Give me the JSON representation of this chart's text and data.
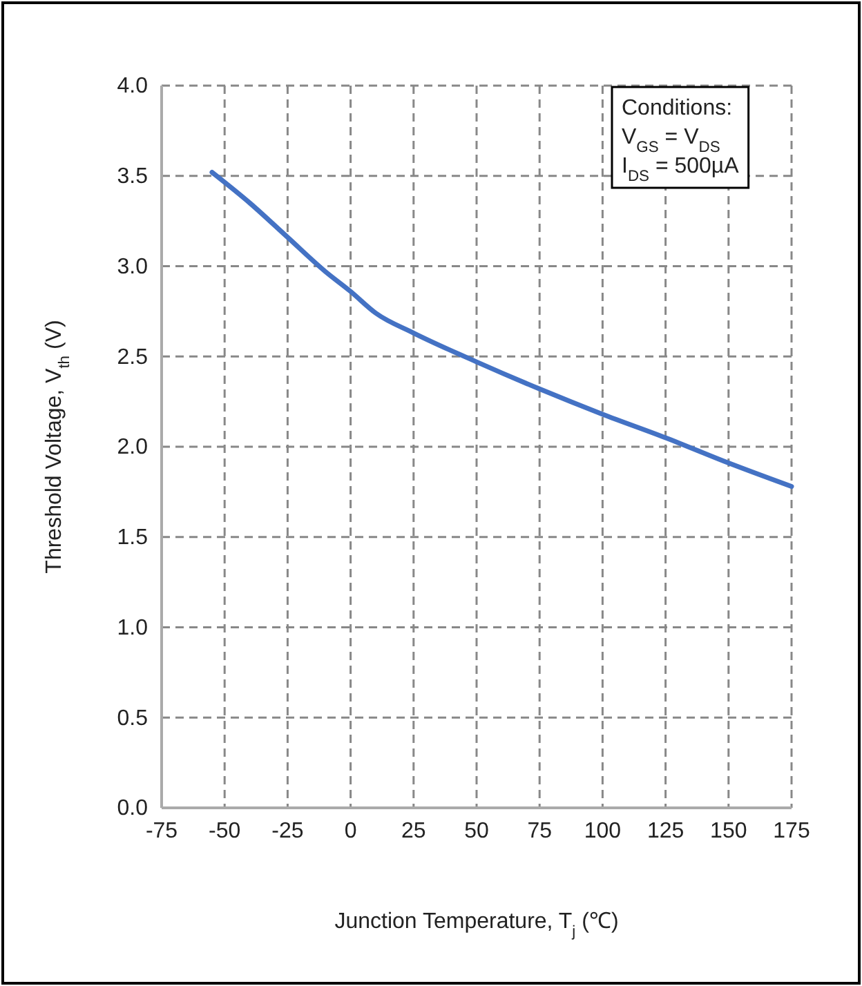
{
  "chart_data": {
    "type": "line",
    "xlabel": "Junction Temperature, T$_{j}$ (℃)",
    "ylabel": "Threshold  Voltage,  V$_{th}$ (V)",
    "x": [
      -55,
      -40,
      -25,
      -10,
      0,
      10,
      25,
      50,
      75,
      100,
      125,
      150,
      175
    ],
    "series": [
      {
        "color": "#4472c4",
        "values": [
          3.52,
          3.35,
          3.16,
          2.97,
          2.86,
          2.74,
          2.63,
          2.47,
          2.32,
          2.18,
          2.05,
          1.91,
          1.78
        ]
      }
    ],
    "xlim": [
      -75,
      175
    ],
    "xticks": [
      -75,
      -50,
      -25,
      0,
      25,
      50,
      75,
      100,
      125,
      150,
      175
    ],
    "ylim": [
      0,
      4
    ],
    "yticks": [
      {
        "value": 0,
        "label": "0.0"
      },
      {
        "value": 0.5,
        "label": "0.5"
      },
      {
        "value": 1,
        "label": "1.0"
      },
      {
        "value": 1.5,
        "label": "1.5"
      },
      {
        "value": 2,
        "label": "2.0"
      },
      {
        "value": 2.5,
        "label": "2.5"
      },
      {
        "value": 3,
        "label": "3.0"
      },
      {
        "value": 3.5,
        "label": "3.5"
      },
      {
        "value": 4,
        "label": "4.0"
      }
    ],
    "grid": true,
    "line_style": "solid",
    "marker": "none",
    "annotations": [
      "Conditions:",
      "V$_{GS}$ = V$_{DS}$",
      "I$_{DS}$ = 500µA"
    ]
  }
}
